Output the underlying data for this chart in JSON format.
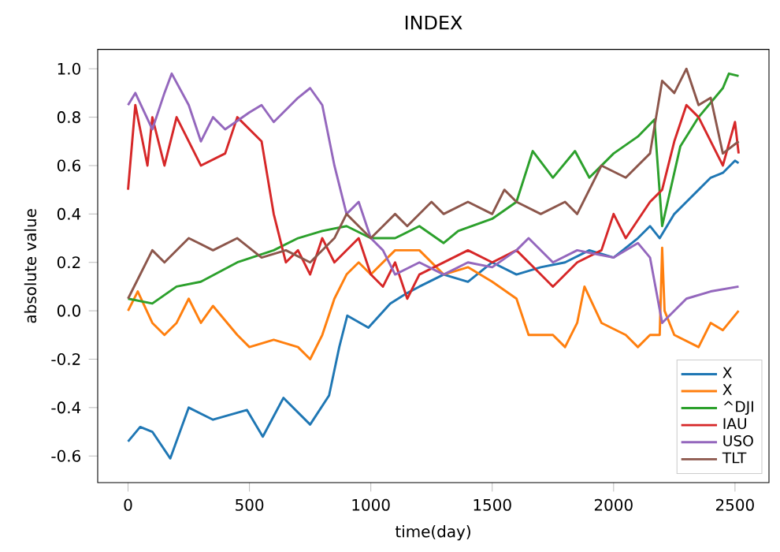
{
  "chart_data": {
    "type": "line",
    "title": "INDEX",
    "xlabel": "time(day)",
    "ylabel": "absolute value",
    "xlim": [
      -125,
      2640
    ],
    "ylim": [
      -0.71,
      1.08
    ],
    "xticks": [
      0,
      500,
      1000,
      1500,
      2000,
      2500
    ],
    "yticks": [
      -0.6,
      -0.4,
      -0.2,
      {
        "value": 0,
        "label": "0.0"
      },
      0.2,
      0.4,
      0.6,
      0.8,
      {
        "value": 1,
        "label": "1.0"
      }
    ],
    "legend": "bottom right",
    "grid": false,
    "marker": "none",
    "line_style": "solid",
    "series": [
      {
        "name": "X",
        "color": "#1f77b4",
        "x": [
          0,
          50,
          100,
          174,
          250,
          350,
          490,
          555,
          640,
          750,
          828,
          870,
          903,
          990,
          1080,
          1144,
          1200,
          1300,
          1400,
          1500,
          1600,
          1700,
          1800,
          1900,
          2000,
          2100,
          2150,
          2190,
          2200,
          2250,
          2350,
          2400,
          2450,
          2500,
          2515
        ],
        "values": [
          -0.54,
          -0.48,
          -0.5,
          -0.61,
          -0.4,
          -0.45,
          -0.41,
          -0.52,
          -0.36,
          -0.47,
          -0.35,
          -0.15,
          -0.02,
          -0.07,
          0.03,
          0.07,
          0.1,
          0.15,
          0.12,
          0.2,
          0.15,
          0.18,
          0.2,
          0.25,
          0.22,
          0.3,
          0.35,
          0.3,
          null,
          0.4,
          0.5,
          0.55,
          0.57,
          0.62,
          0.61
        ]
      },
      {
        "name": "X",
        "color": "#ff7f0e",
        "x": [
          0,
          40,
          100,
          150,
          200,
          250,
          300,
          350,
          450,
          500,
          600,
          700,
          750,
          800,
          850,
          900,
          950,
          1000,
          1100,
          1200,
          1300,
          1400,
          1500,
          1600,
          1650,
          1750,
          1800,
          1850,
          1880,
          1950,
          2050,
          2100,
          2150,
          2190,
          2200,
          2210,
          2250,
          2350,
          2400,
          2450,
          2515
        ],
        "values": [
          0.0,
          0.08,
          -0.05,
          -0.1,
          -0.05,
          0.05,
          -0.05,
          0.02,
          -0.1,
          -0.15,
          -0.12,
          -0.15,
          -0.2,
          -0.1,
          0.05,
          0.15,
          0.2,
          0.15,
          0.25,
          0.25,
          0.15,
          0.18,
          0.12,
          0.05,
          -0.1,
          -0.1,
          -0.15,
          -0.05,
          0.1,
          -0.05,
          -0.1,
          -0.15,
          -0.1,
          -0.1,
          0.26,
          0.0,
          -0.1,
          -0.15,
          -0.05,
          -0.08,
          0.0
        ]
      },
      {
        "name": "^DJI",
        "color": "#2ca02c",
        "x": [
          0,
          100,
          200,
          300,
          450,
          600,
          700,
          800,
          900,
          1000,
          1100,
          1200,
          1300,
          1360,
          1500,
          1600,
          1667,
          1750,
          1841,
          1900,
          2000,
          2100,
          2168,
          2200,
          2275,
          2350,
          2450,
          2475,
          2515
        ],
        "values": [
          0.05,
          0.03,
          0.1,
          0.12,
          0.2,
          0.25,
          0.3,
          0.33,
          0.35,
          0.3,
          0.3,
          0.35,
          0.28,
          0.33,
          0.38,
          0.45,
          0.66,
          0.55,
          0.66,
          0.55,
          0.65,
          0.72,
          0.79,
          0.35,
          0.68,
          0.8,
          0.92,
          0.98,
          0.97
        ]
      },
      {
        "name": "IAU",
        "color": "#d62728",
        "x": [
          0,
          30,
          80,
          100,
          150,
          200,
          300,
          400,
          450,
          550,
          600,
          650,
          700,
          750,
          800,
          850,
          900,
          950,
          1000,
          1050,
          1100,
          1150,
          1200,
          1300,
          1400,
          1500,
          1600,
          1700,
          1750,
          1850,
          1950,
          2000,
          2050,
          2150,
          2200,
          2250,
          2300,
          2350,
          2450,
          2500,
          2515
        ],
        "values": [
          0.5,
          0.85,
          0.6,
          0.8,
          0.6,
          0.8,
          0.6,
          0.65,
          0.8,
          0.7,
          0.4,
          0.2,
          0.25,
          0.15,
          0.3,
          0.2,
          0.25,
          0.3,
          0.15,
          0.1,
          0.2,
          0.05,
          0.15,
          0.2,
          0.25,
          0.2,
          0.25,
          0.15,
          0.1,
          0.2,
          0.25,
          0.4,
          0.3,
          0.45,
          0.5,
          0.7,
          0.85,
          0.8,
          0.6,
          0.78,
          0.65
        ]
      },
      {
        "name": "USO",
        "color": "#9467bd",
        "x": [
          0,
          30,
          100,
          150,
          180,
          250,
          300,
          350,
          400,
          500,
          550,
          600,
          700,
          750,
          800,
          850,
          900,
          950,
          1000,
          1050,
          1100,
          1200,
          1300,
          1400,
          1500,
          1600,
          1650,
          1750,
          1850,
          2000,
          2100,
          2150,
          2200,
          2300,
          2400,
          2515
        ],
        "values": [
          0.85,
          0.9,
          0.75,
          0.9,
          0.98,
          0.85,
          0.7,
          0.8,
          0.75,
          0.82,
          0.85,
          0.78,
          0.88,
          0.92,
          0.85,
          0.6,
          0.4,
          0.45,
          0.3,
          0.25,
          0.15,
          0.2,
          0.15,
          0.2,
          0.18,
          0.25,
          0.3,
          0.2,
          0.25,
          0.22,
          0.28,
          0.22,
          -0.05,
          0.05,
          0.08,
          0.1
        ]
      },
      {
        "name": "TLT",
        "color": "#8c564b",
        "x": [
          0,
          50,
          100,
          150,
          250,
          350,
          450,
          550,
          650,
          750,
          850,
          900,
          950,
          1000,
          1050,
          1100,
          1150,
          1250,
          1300,
          1400,
          1500,
          1550,
          1600,
          1700,
          1800,
          1850,
          1900,
          1950,
          2050,
          2100,
          2150,
          2200,
          2250,
          2300,
          2350,
          2400,
          2450,
          2515
        ],
        "values": [
          0.05,
          0.15,
          0.25,
          0.2,
          0.3,
          0.25,
          0.3,
          0.22,
          0.25,
          0.2,
          0.3,
          0.4,
          0.35,
          0.3,
          0.35,
          0.4,
          0.35,
          0.45,
          0.4,
          0.45,
          0.4,
          0.5,
          0.45,
          0.4,
          0.45,
          0.4,
          0.5,
          0.6,
          0.55,
          0.6,
          0.65,
          0.95,
          0.9,
          1.0,
          0.85,
          0.88,
          0.65,
          0.7
        ]
      }
    ]
  }
}
